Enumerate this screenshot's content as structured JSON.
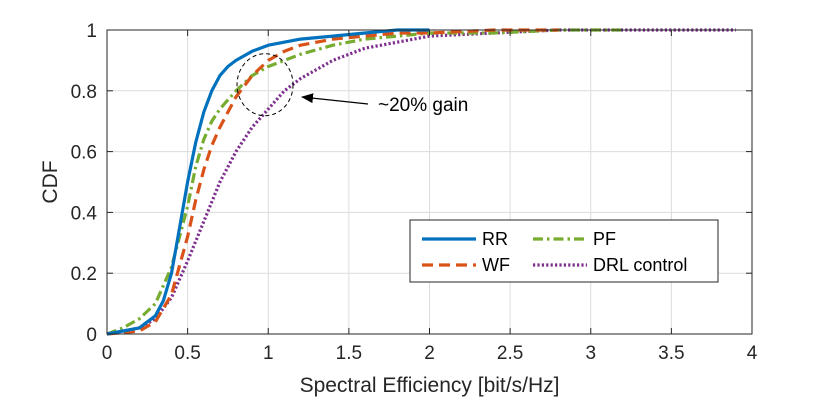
{
  "chart_data": {
    "type": "line",
    "title": "",
    "xlabel": "Spectral Efficiency [bit/s/Hz]",
    "ylabel": "CDF",
    "xlim": [
      0,
      4
    ],
    "ylim": [
      0,
      1
    ],
    "grid": true,
    "xticks": [
      0,
      0.5,
      1,
      1.5,
      2,
      2.5,
      3,
      3.5,
      4
    ],
    "xtick_labels": [
      "0",
      "0.5",
      "1",
      "1.5",
      "2",
      "2.5",
      "3",
      "3.5",
      "4"
    ],
    "yticks": [
      0,
      0.2,
      0.4,
      0.6,
      0.8,
      1
    ],
    "ytick_labels": [
      "0",
      "0.2",
      "0.4",
      "0.6",
      "0.8",
      "1"
    ],
    "legend_position": "bottom-right",
    "series": [
      {
        "name": "RR",
        "color": "#0072BD",
        "style": "solid",
        "x": [
          0,
          0.1,
          0.2,
          0.3,
          0.35,
          0.4,
          0.45,
          0.5,
          0.55,
          0.6,
          0.65,
          0.7,
          0.75,
          0.8,
          0.9,
          1.0,
          1.2,
          1.4,
          1.6,
          1.8,
          2.0
        ],
        "y": [
          0,
          0.01,
          0.02,
          0.06,
          0.11,
          0.2,
          0.35,
          0.5,
          0.63,
          0.73,
          0.8,
          0.85,
          0.88,
          0.9,
          0.93,
          0.95,
          0.97,
          0.98,
          0.99,
          1.0,
          1.0
        ]
      },
      {
        "name": "WF",
        "color": "#D95319",
        "style": "dashed",
        "x": [
          0,
          0.2,
          0.3,
          0.4,
          0.5,
          0.55,
          0.6,
          0.65,
          0.7,
          0.75,
          0.8,
          0.9,
          1.0,
          1.1,
          1.2,
          1.4,
          1.6,
          1.8,
          2.0,
          2.4,
          2.8
        ],
        "y": [
          0,
          0.01,
          0.04,
          0.13,
          0.32,
          0.44,
          0.54,
          0.62,
          0.68,
          0.73,
          0.78,
          0.85,
          0.9,
          0.93,
          0.95,
          0.97,
          0.98,
          0.99,
          0.99,
          1.0,
          1.0
        ]
      },
      {
        "name": "PF",
        "color": "#77AC30",
        "style": "dashdot",
        "x": [
          0,
          0.1,
          0.2,
          0.3,
          0.4,
          0.5,
          0.55,
          0.6,
          0.65,
          0.7,
          0.8,
          0.9,
          1.0,
          1.2,
          1.4,
          1.6,
          1.8,
          2.0,
          2.4,
          2.8,
          3.2
        ],
        "y": [
          0,
          0.02,
          0.05,
          0.1,
          0.22,
          0.42,
          0.55,
          0.64,
          0.7,
          0.74,
          0.8,
          0.85,
          0.88,
          0.92,
          0.95,
          0.97,
          0.98,
          0.99,
          0.99,
          1.0,
          1.0
        ]
      },
      {
        "name": "DRL control",
        "color": "#7E2F8E",
        "style": "dotted",
        "x": [
          0,
          0.1,
          0.2,
          0.3,
          0.4,
          0.5,
          0.6,
          0.7,
          0.8,
          0.9,
          1.0,
          1.1,
          1.2,
          1.4,
          1.6,
          1.8,
          2.0,
          2.4,
          2.8,
          3.2,
          3.6,
          3.9
        ],
        "y": [
          0,
          0.01,
          0.02,
          0.05,
          0.12,
          0.24,
          0.37,
          0.5,
          0.6,
          0.68,
          0.74,
          0.8,
          0.84,
          0.9,
          0.94,
          0.96,
          0.98,
          0.99,
          1.0,
          1.0,
          1.0,
          1.0
        ]
      }
    ],
    "annotation": {
      "text": "~20% gain",
      "target_x": 0.98,
      "target_y": 0.82
    }
  }
}
